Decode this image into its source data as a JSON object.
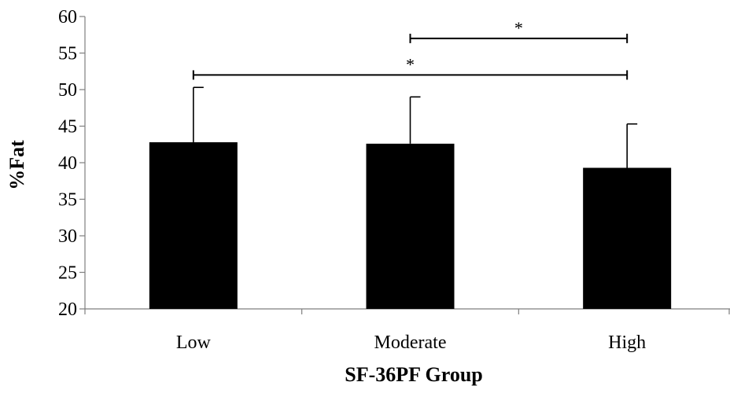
{
  "chart_data": {
    "type": "bar",
    "categories": [
      "Low",
      "Moderate",
      "High"
    ],
    "values": [
      42.8,
      42.6,
      39.3
    ],
    "error_upper": [
      50.3,
      49.0,
      45.3
    ],
    "xlabel": "SF-36PF Group",
    "ylabel": "%Fat",
    "ylim": [
      20,
      60
    ],
    "yticks": [
      20,
      25,
      30,
      35,
      40,
      45,
      50,
      55,
      60
    ],
    "grid": false,
    "bar_color": "#000000",
    "significance": [
      {
        "from": "Moderate",
        "to": "High",
        "y": 57,
        "label": "*"
      },
      {
        "from": "Low",
        "to": "High",
        "y": 52,
        "label": "*"
      }
    ]
  }
}
